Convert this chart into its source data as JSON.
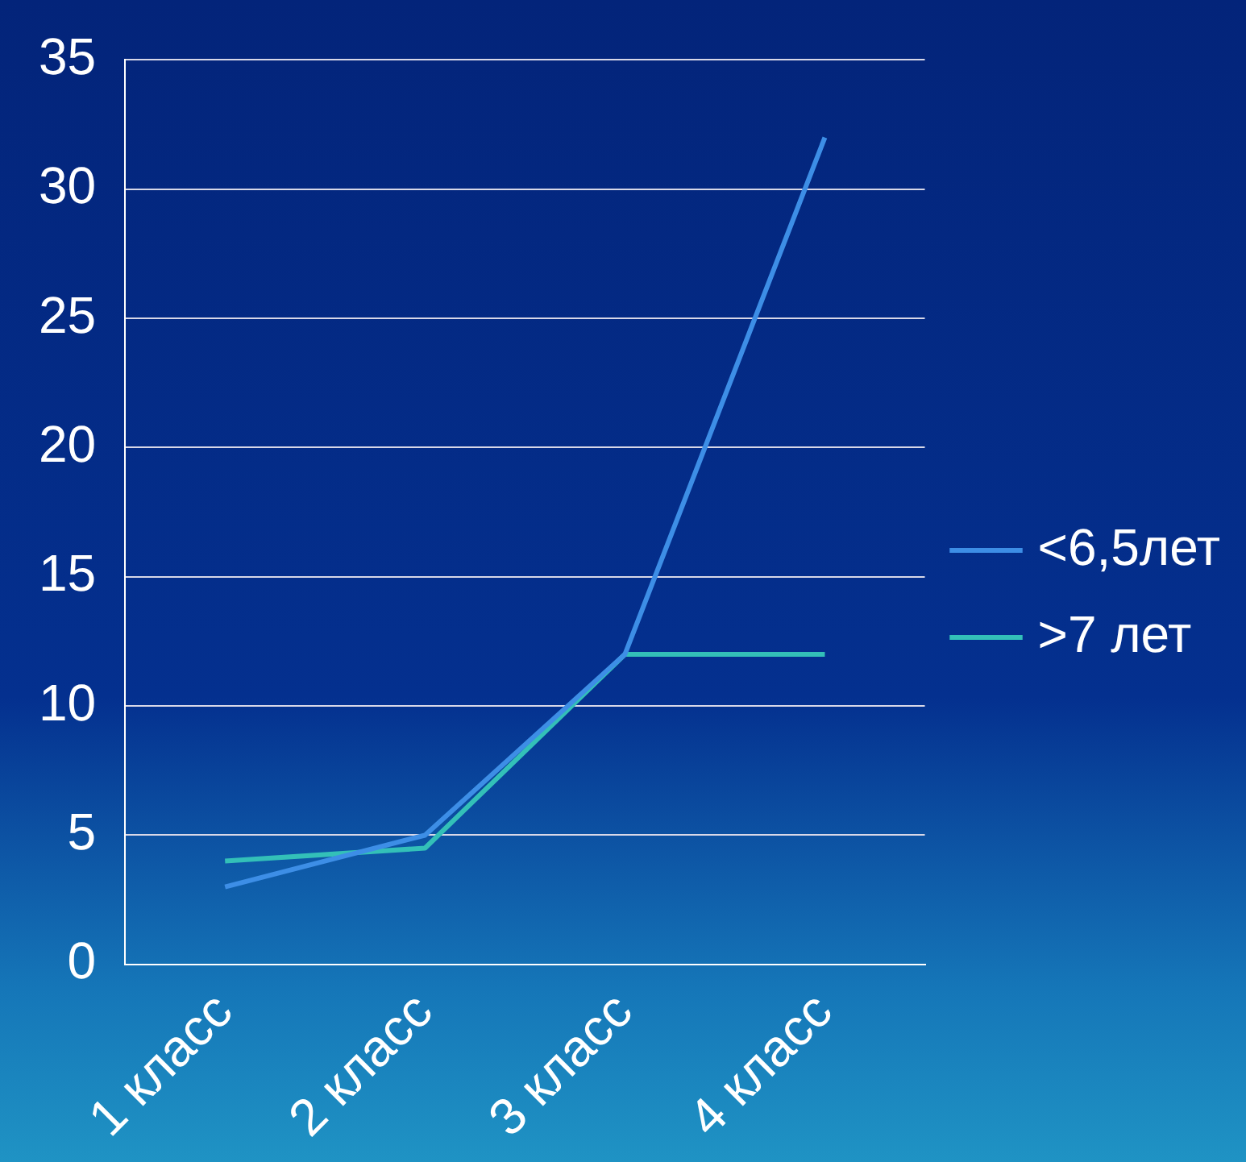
{
  "chart_data": {
    "type": "line",
    "categories": [
      "1 класс",
      "2 класс",
      "3 класс",
      "4 класс"
    ],
    "series": [
      {
        "name": "<6,5лет",
        "color": "#3d8ee6",
        "values": [
          3,
          5,
          12,
          32
        ]
      },
      {
        "name": ">7 лет",
        "color": "#33c0b8",
        "values": [
          4,
          4.5,
          12,
          12
        ]
      }
    ],
    "ylim": [
      0,
      35
    ],
    "yticks": [
      0,
      5,
      10,
      15,
      20,
      25,
      30,
      35
    ],
    "grid": "y",
    "legend": "right",
    "marker": "none",
    "line_style": "solid"
  }
}
